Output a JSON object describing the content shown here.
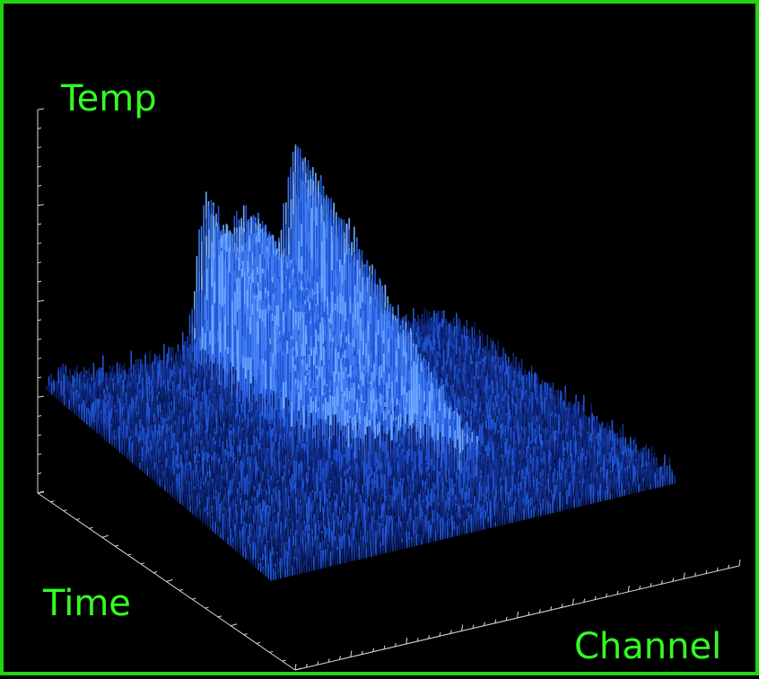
{
  "chart_data": {
    "type": "surface-3d",
    "zlabel": "Temp",
    "ylabel": "Time",
    "xlabel": "Channel",
    "features": [
      {
        "kind": "noise-floor",
        "description": "flat noisy surface over full channel/time grid"
      },
      {
        "kind": "ridge",
        "description": "elevated band running along time axis at mid channel, rising toward later time"
      }
    ]
  },
  "colors": {
    "frame": "#22d40f",
    "label": "#33ff22",
    "axis": "#d8d8d8",
    "surface_dark": "#0a1f6e",
    "surface_mid": "#1f55d8",
    "surface_light": "#6fa8ff"
  }
}
